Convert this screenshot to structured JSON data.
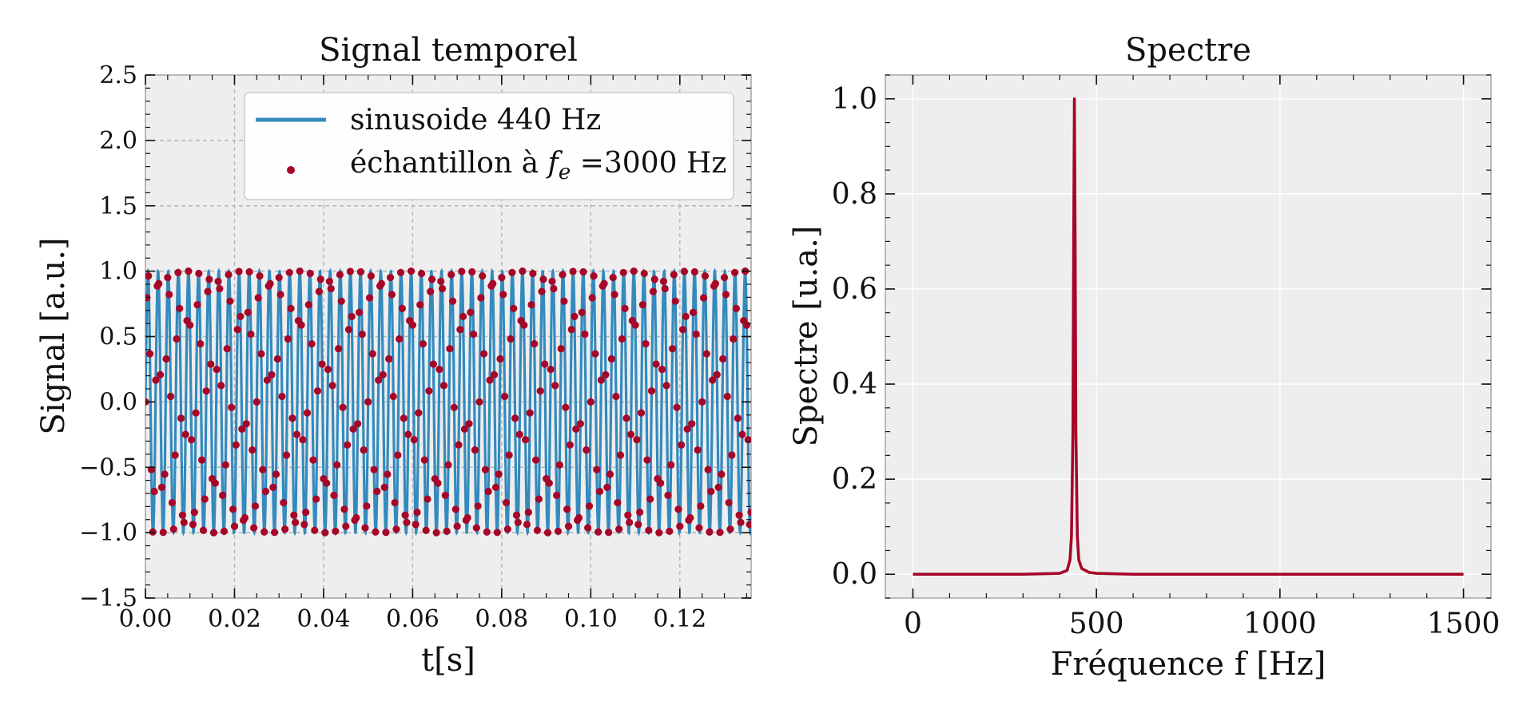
{
  "chart_data": [
    {
      "type": "line",
      "title": "Signal temporel",
      "xlabel": "t[s]",
      "ylabel": "Signal [a.u.]",
      "xlim": [
        0,
        0.136
      ],
      "ylim": [
        -1.5,
        2.5
      ],
      "x_ticks": [
        "0.00",
        "0.02",
        "0.04",
        "0.06",
        "0.08",
        "0.10",
        "0.12"
      ],
      "x_tick_values": [
        0,
        0.02,
        0.04,
        0.06,
        0.08,
        0.1,
        0.12
      ],
      "y_ticks": [
        "−1.5",
        "−1.0",
        "−0.5",
        "0.0",
        "0.5",
        "1.0",
        "1.5",
        "2.0",
        "2.5"
      ],
      "y_tick_values": [
        -1.5,
        -1.0,
        -0.5,
        0.0,
        0.5,
        1.0,
        1.5,
        2.0,
        2.5
      ],
      "grid": true,
      "grid_style": "dashed",
      "legend_position": "upper-right",
      "series": [
        {
          "name": "sinusoide 440 Hz",
          "kind": "line",
          "function": "sin(2*pi*440*t)",
          "frequency_hz": 440,
          "amplitude": 1.0,
          "t_range": [
            0,
            0.136
          ],
          "color": "#348ABD"
        },
        {
          "name_prefix": "échantillon à ",
          "name_math": "f",
          "name_sub": "e",
          "name_suffix": " =3000 Hz",
          "kind": "scatter",
          "function": "sin(2*pi*440*t)",
          "sampling_rate_hz": 3000,
          "t_range": [
            0,
            0.136
          ],
          "color": "#A60628"
        }
      ]
    },
    {
      "type": "line",
      "title": "Spectre",
      "xlabel": "Fréquence f [Hz]",
      "ylabel": "Spectre [u.a.]",
      "xlim": [
        -75,
        1575
      ],
      "ylim": [
        -0.05,
        1.05
      ],
      "x_ticks": [
        "0",
        "500",
        "1000",
        "1500"
      ],
      "x_tick_values": [
        0,
        500,
        1000,
        1500
      ],
      "y_ticks": [
        "0.0",
        "0.2",
        "0.4",
        "0.6",
        "0.8",
        "1.0"
      ],
      "y_tick_values": [
        0,
        0.2,
        0.4,
        0.6,
        0.8,
        1.0
      ],
      "grid": true,
      "grid_style": "solid",
      "series": [
        {
          "kind": "line",
          "color": "#A60628",
          "x": [
            0,
            300,
            400,
            420,
            428,
            432,
            436,
            438,
            440,
            442,
            444,
            448,
            452,
            460,
            480,
            500,
            600,
            800,
            1000,
            1200,
            1500
          ],
          "y": [
            0,
            0,
            0.002,
            0.008,
            0.03,
            0.08,
            0.3,
            0.7,
            1.0,
            0.7,
            0.3,
            0.08,
            0.03,
            0.012,
            0.004,
            0.002,
            0,
            0,
            0,
            0,
            0
          ]
        }
      ]
    }
  ]
}
